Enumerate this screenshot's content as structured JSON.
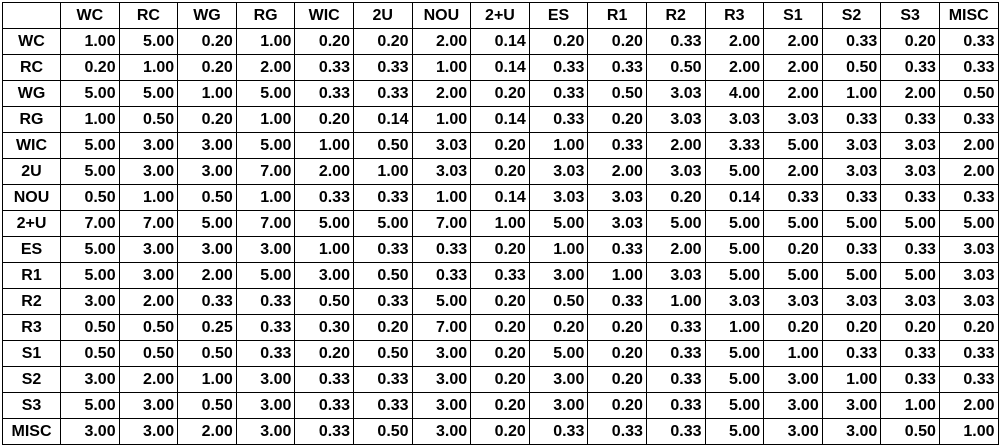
{
  "table": {
    "corner": "",
    "columns": [
      "WC",
      "RC",
      "WG",
      "RG",
      "WIC",
      "2U",
      "NOU",
      "2+U",
      "ES",
      "R1",
      "R2",
      "R3",
      "S1",
      "S2",
      "S3",
      "MISC"
    ],
    "rows": [
      {
        "label": "WC",
        "values": [
          "1.00",
          "5.00",
          "0.20",
          "1.00",
          "0.20",
          "0.20",
          "2.00",
          "0.14",
          "0.20",
          "0.20",
          "0.33",
          "2.00",
          "2.00",
          "0.33",
          "0.20",
          "0.33"
        ]
      },
      {
        "label": "RC",
        "values": [
          "0.20",
          "1.00",
          "0.20",
          "2.00",
          "0.33",
          "0.33",
          "1.00",
          "0.14",
          "0.33",
          "0.33",
          "0.50",
          "2.00",
          "2.00",
          "0.50",
          "0.33",
          "0.33"
        ]
      },
      {
        "label": "WG",
        "values": [
          "5.00",
          "5.00",
          "1.00",
          "5.00",
          "0.33",
          "0.33",
          "2.00",
          "0.20",
          "0.33",
          "0.50",
          "3.03",
          "4.00",
          "2.00",
          "1.00",
          "2.00",
          "0.50"
        ]
      },
      {
        "label": "RG",
        "values": [
          "1.00",
          "0.50",
          "0.20",
          "1.00",
          "0.20",
          "0.14",
          "1.00",
          "0.14",
          "0.33",
          "0.20",
          "3.03",
          "3.03",
          "3.03",
          "0.33",
          "0.33",
          "0.33"
        ]
      },
      {
        "label": "WIC",
        "values": [
          "5.00",
          "3.00",
          "3.00",
          "5.00",
          "1.00",
          "0.50",
          "3.03",
          "0.20",
          "1.00",
          "0.33",
          "2.00",
          "3.33",
          "5.00",
          "3.03",
          "3.03",
          "2.00"
        ]
      },
      {
        "label": "2U",
        "values": [
          "5.00",
          "3.00",
          "3.00",
          "7.00",
          "2.00",
          "1.00",
          "3.03",
          "0.20",
          "3.03",
          "2.00",
          "3.03",
          "5.00",
          "2.00",
          "3.03",
          "3.03",
          "2.00"
        ]
      },
      {
        "label": "NOU",
        "values": [
          "0.50",
          "1.00",
          "0.50",
          "1.00",
          "0.33",
          "0.33",
          "1.00",
          "0.14",
          "3.03",
          "3.03",
          "0.20",
          "0.14",
          "0.33",
          "0.33",
          "0.33",
          "0.33"
        ]
      },
      {
        "label": "2+U",
        "values": [
          "7.00",
          "7.00",
          "5.00",
          "7.00",
          "5.00",
          "5.00",
          "7.00",
          "1.00",
          "5.00",
          "3.03",
          "5.00",
          "5.00",
          "5.00",
          "5.00",
          "5.00",
          "5.00"
        ]
      },
      {
        "label": "ES",
        "values": [
          "5.00",
          "3.00",
          "3.00",
          "3.00",
          "1.00",
          "0.33",
          "0.33",
          "0.20",
          "1.00",
          "0.33",
          "2.00",
          "5.00",
          "0.20",
          "0.33",
          "0.33",
          "3.03"
        ]
      },
      {
        "label": "R1",
        "values": [
          "5.00",
          "3.00",
          "2.00",
          "5.00",
          "3.00",
          "0.50",
          "0.33",
          "0.33",
          "3.00",
          "1.00",
          "3.03",
          "5.00",
          "5.00",
          "5.00",
          "5.00",
          "3.03"
        ]
      },
      {
        "label": "R2",
        "values": [
          "3.00",
          "2.00",
          "0.33",
          "0.33",
          "0.50",
          "0.33",
          "5.00",
          "0.20",
          "0.50",
          "0.33",
          "1.00",
          "3.03",
          "3.03",
          "3.03",
          "3.03",
          "3.03"
        ]
      },
      {
        "label": "R3",
        "values": [
          "0.50",
          "0.50",
          "0.25",
          "0.33",
          "0.30",
          "0.20",
          "7.00",
          "0.20",
          "0.20",
          "0.20",
          "0.33",
          "1.00",
          "0.20",
          "0.20",
          "0.20",
          "0.20"
        ]
      },
      {
        "label": "S1",
        "values": [
          "0.50",
          "0.50",
          "0.50",
          "0.33",
          "0.20",
          "0.50",
          "3.00",
          "0.20",
          "5.00",
          "0.20",
          "0.33",
          "5.00",
          "1.00",
          "0.33",
          "0.33",
          "0.33"
        ]
      },
      {
        "label": "S2",
        "values": [
          "3.00",
          "2.00",
          "1.00",
          "3.00",
          "0.33",
          "0.33",
          "3.00",
          "0.20",
          "3.00",
          "0.20",
          "0.33",
          "5.00",
          "3.00",
          "1.00",
          "0.33",
          "0.33"
        ]
      },
      {
        "label": "S3",
        "values": [
          "5.00",
          "3.00",
          "0.50",
          "3.00",
          "0.33",
          "0.33",
          "3.00",
          "0.20",
          "3.00",
          "0.20",
          "0.33",
          "5.00",
          "3.00",
          "3.00",
          "1.00",
          "2.00"
        ]
      },
      {
        "label": "MISC",
        "values": [
          "3.00",
          "3.00",
          "2.00",
          "3.00",
          "0.33",
          "0.50",
          "3.00",
          "0.20",
          "0.33",
          "0.33",
          "0.33",
          "5.00",
          "3.00",
          "3.00",
          "0.50",
          "1.00"
        ]
      }
    ]
  }
}
